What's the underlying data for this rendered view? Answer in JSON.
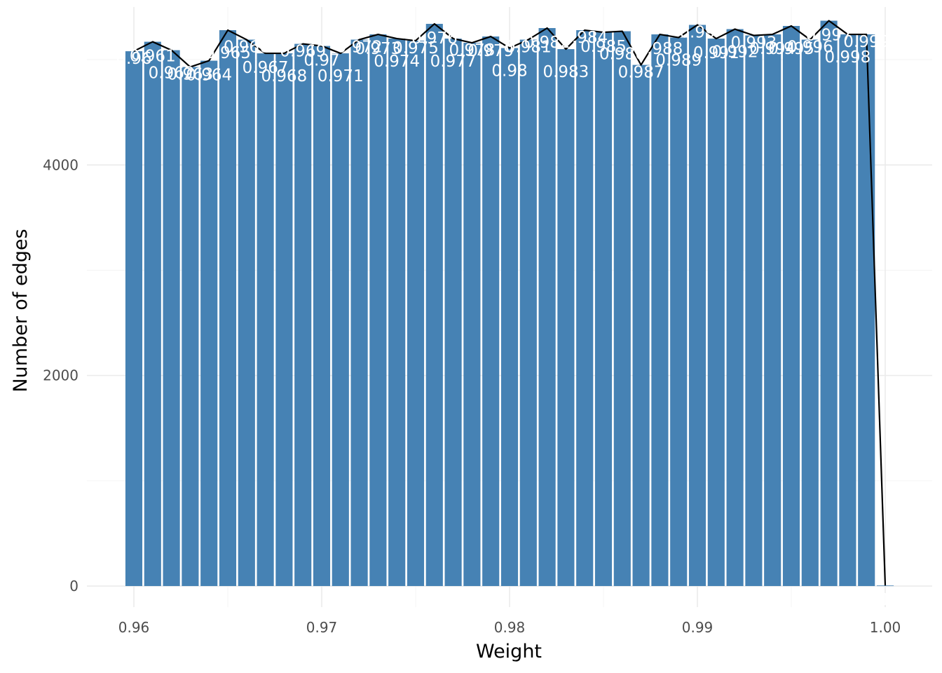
{
  "chart_data": {
    "type": "bar",
    "xlabel": "Weight",
    "ylabel": "Number of edges",
    "xlim": [
      0.9575,
      1.0025
    ],
    "ylim": [
      -200,
      5500
    ],
    "x_ticks": [
      0.96,
      0.97,
      0.98,
      0.99,
      1.0
    ],
    "x_tick_labels": [
      "0.96",
      "0.97",
      "0.98",
      "0.99",
      "1.00"
    ],
    "y_ticks": [
      0,
      2000,
      4000
    ],
    "y_tick_labels": [
      "0",
      "2000",
      "4000"
    ],
    "grid": true,
    "bar_width": 0.0009,
    "bar_color": "#4682b4",
    "line_color": "#000000",
    "label_color": "#ffffff",
    "categories": [
      0.96,
      0.961,
      0.962,
      0.963,
      0.964,
      0.965,
      0.966,
      0.967,
      0.968,
      0.969,
      0.97,
      0.971,
      0.972,
      0.973,
      0.974,
      0.975,
      0.976,
      0.977,
      0.978,
      0.979,
      0.98,
      0.981,
      0.982,
      0.983,
      0.984,
      0.985,
      0.986,
      0.987,
      0.988,
      0.989,
      0.99,
      0.991,
      0.992,
      0.993,
      0.994,
      0.995,
      0.996,
      0.997,
      0.998,
      0.999,
      1.0
    ],
    "bar_labels": [
      "0.96",
      "0.961",
      "0.962",
      "0.963",
      "0.964",
      "0.965",
      "0.966",
      "0.967",
      "0.968",
      "0.969",
      "0.97",
      "0.971",
      "0.972",
      "0.973",
      "0.974",
      "0.975",
      "0.976",
      "0.977",
      "0.978",
      "0.979",
      "0.98",
      "0.981",
      "0.982",
      "0.983",
      "0.984",
      "0.985",
      "0.986",
      "0.987",
      "0.988",
      "0.989",
      "0.99",
      "0.991",
      "0.992",
      "0.993",
      "0.994",
      "0.995",
      "0.996",
      "0.997",
      "0.998",
      "0.999",
      "1"
    ],
    "values": [
      5080,
      5170,
      5090,
      4930,
      4990,
      5280,
      5190,
      5060,
      5060,
      5150,
      5130,
      5060,
      5190,
      5240,
      5200,
      5180,
      5340,
      5200,
      5160,
      5220,
      5110,
      5190,
      5300,
      5100,
      5280,
      5260,
      5270,
      4950,
      5240,
      5210,
      5330,
      5200,
      5290,
      5230,
      5240,
      5320,
      5190,
      5370,
      5240,
      5240,
      5
    ]
  }
}
